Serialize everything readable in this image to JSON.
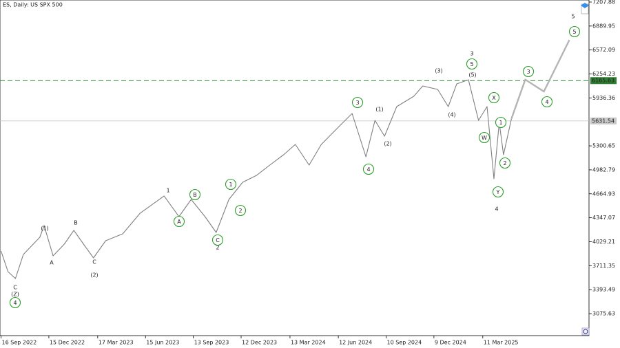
{
  "chart_data": {
    "type": "line",
    "title": "ES, Daily: US SPX 500",
    "series": [
      {
        "color": "#7f7f7f",
        "x": [
          "2022-09-16",
          "2022-09-29",
          "2022-10-13",
          "2022-10-28",
          "2022-11-28",
          "2022-12-06",
          "2022-12-23",
          "2023-01-13",
          "2023-01-31",
          "2023-02-21",
          "2023-03-09",
          "2023-04-01",
          "2023-05-03",
          "2023-06-05",
          "2023-07-20",
          "2023-08-17",
          "2023-09-09",
          "2023-10-05",
          "2023-10-26",
          "2023-11-19",
          "2023-12-15",
          "2024-01-10",
          "2024-02-04",
          "2024-03-01",
          "2024-03-23",
          "2024-04-18",
          "2024-05-11",
          "2024-06-12",
          "2024-07-08",
          "2024-08-03",
          "2024-08-20",
          "2024-09-07",
          "2024-09-30",
          "2024-11-01",
          "2024-11-18",
          "2024-12-16",
          "2025-01-05",
          "2025-01-21",
          "2025-02-12",
          "2025-03-03",
          "2025-03-19",
          "2025-04-01",
          "2025-04-11",
          "2025-04-19",
          "2025-05-04"
        ],
        "values": [
          3906,
          3632,
          3541,
          3860,
          4088,
          4243,
          3842,
          3997,
          4180,
          3970,
          3815,
          4043,
          4134,
          4408,
          4636,
          4362,
          4590,
          4362,
          4152,
          4590,
          4818,
          4909,
          5046,
          5183,
          5320,
          5046,
          5320,
          5548,
          5730,
          5155,
          5639,
          5429,
          5821,
          5958,
          6095,
          6049,
          5821,
          6122,
          6177,
          5639,
          5821,
          4864,
          5611,
          5183,
          5660
        ]
      },
      {
        "color": "#b4b4b4",
        "x": [
          "2025-05-04",
          "2025-05-30",
          "2025-07-04",
          "2025-08-21"
        ],
        "values": [
          5660,
          6180,
          6021,
          6705
        ]
      }
    ],
    "xlim": [
      "2022-09-14",
      "2025-09-27"
    ],
    "xticks": [
      {
        "value": "2022-09-16",
        "label": "16 Sep 2022"
      },
      {
        "value": "2022-12-15",
        "label": "15 Dec 2022"
      },
      {
        "value": "2023-03-17",
        "label": "17 Mar 2023"
      },
      {
        "value": "2023-06-15",
        "label": "15 Jun 2023"
      },
      {
        "value": "2023-09-13",
        "label": "13 Sep 2023"
      },
      {
        "value": "2023-12-12",
        "label": "12 Dec 2023"
      },
      {
        "value": "2024-03-13",
        "label": "13 Mar 2024"
      },
      {
        "value": "2024-06-12",
        "label": "12 Jun 2024"
      },
      {
        "value": "2024-09-10",
        "label": "10 Sep 2024"
      },
      {
        "value": "2024-12-09",
        "label": "9 Dec 2024"
      },
      {
        "value": "2025-03-11",
        "label": "11 Mar 2025"
      }
    ],
    "ylim": [
      2784,
      7235
    ],
    "yticks": [
      3075.63,
      3393.49,
      3711.35,
      4029.21,
      4347.07,
      4664.93,
      4982.79,
      5300.65,
      5936.36,
      6254.23,
      6572.09,
      6889.95,
      7207.88
    ],
    "grid": false,
    "levels": [
      {
        "value": 6165.63,
        "color": "#2e7d32",
        "style": "dashed"
      },
      {
        "value": 5631.54,
        "color": "#c8c8c8",
        "style": "solid"
      }
    ],
    "wave_labels": [
      {
        "text": "C",
        "color": "#8b1a1a"
      },
      {
        "text": "(Z)",
        "color": "#1a237e"
      },
      {
        "text": "4",
        "color": "#2e9e2e",
        "circled": true
      },
      {
        "text": "(1)",
        "color": "#1a237e"
      },
      {
        "text": "A",
        "color": "#8b1a1a"
      },
      {
        "text": "B",
        "color": "#8b1a1a"
      },
      {
        "text": "C",
        "color": "#8b1a1a"
      },
      {
        "text": "(2)",
        "color": "#1a237e"
      },
      {
        "text": "1",
        "color": "#8b1a1a"
      },
      {
        "text": "B",
        "color": "#2e9e2e",
        "circled": true
      },
      {
        "text": "A",
        "color": "#2e9e2e",
        "circled": true
      },
      {
        "text": "C",
        "color": "#2e9e2e",
        "circled": true
      },
      {
        "text": "2",
        "color": "#8b1a1a"
      },
      {
        "text": "1",
        "color": "#2e9e2e",
        "circled": true
      },
      {
        "text": "2",
        "color": "#2e9e2e",
        "circled": true
      },
      {
        "text": "3",
        "color": "#2e9e2e",
        "circled": true
      },
      {
        "text": "4",
        "color": "#2e9e2e",
        "circled": true
      },
      {
        "text": "(1)",
        "color": "#1a237e"
      },
      {
        "text": "(2)",
        "color": "#1a237e"
      },
      {
        "text": "(3)",
        "color": "#1a237e"
      },
      {
        "text": "(4)",
        "color": "#1a237e"
      },
      {
        "text": "(5)",
        "color": "#1a237e"
      },
      {
        "text": "5",
        "color": "#2e9e2e",
        "circled": true
      },
      {
        "text": "3",
        "color": "#8b1a1a"
      },
      {
        "text": "X",
        "color": "#2e9e2e",
        "circled": true
      },
      {
        "text": "W",
        "color": "#2e9e2e",
        "circled": true
      },
      {
        "text": "1",
        "color": "#2e9e2e",
        "circled": true
      },
      {
        "text": "2",
        "color": "#2e9e2e",
        "circled": true
      },
      {
        "text": "Y",
        "color": "#2e9e2e",
        "circled": true
      },
      {
        "text": "4",
        "color": "#8b1a1a"
      },
      {
        "text": "3",
        "color": "#2e9e2e",
        "circled": true
      },
      {
        "text": "4",
        "color": "#2e9e2e",
        "circled": true
      },
      {
        "text": "5",
        "color": "#2e9e2e",
        "circled": true
      },
      {
        "text": "5",
        "color": "#8b1a1a"
      }
    ]
  }
}
